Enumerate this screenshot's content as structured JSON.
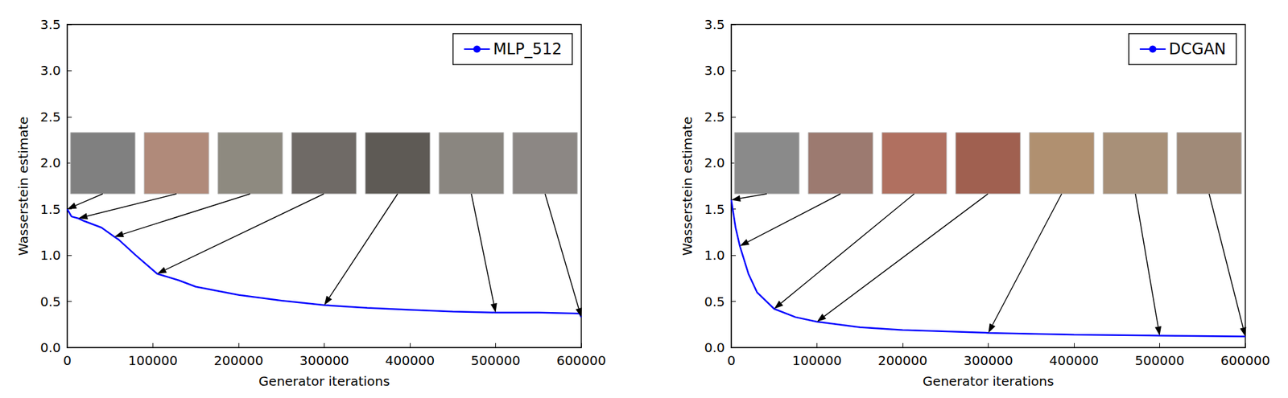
{
  "chart_data": [
    {
      "type": "line",
      "xlabel": "Generator iterations",
      "ylabel": "Wasserstein estimate",
      "x": [
        0,
        5000,
        13000,
        20000,
        40000,
        55000,
        60000,
        80000,
        105000,
        130000,
        150000,
        200000,
        250000,
        300000,
        350000,
        400000,
        450000,
        500000,
        550000,
        598000,
        600000
      ],
      "series": [
        {
          "name": "MLP_512",
          "color": "#0000ff",
          "values": [
            1.5,
            1.42,
            1.4,
            1.37,
            1.3,
            1.2,
            1.17,
            1.0,
            0.8,
            0.73,
            0.66,
            0.57,
            0.51,
            0.46,
            0.43,
            0.41,
            0.39,
            0.38,
            0.38,
            0.37,
            0.33
          ]
        }
      ],
      "xlim": [
        0,
        600000
      ],
      "xticks": [
        0,
        100000,
        200000,
        300000,
        400000,
        500000,
        600000
      ],
      "ylim": [
        0,
        3.5
      ],
      "yticks": [
        {
          "value": 0,
          "label": "0.0"
        },
        {
          "value": 0.5,
          "label": "0.5"
        },
        {
          "value": 1,
          "label": "1.0"
        },
        {
          "value": 1.5,
          "label": "1.5"
        },
        {
          "value": 2,
          "label": "2.0"
        },
        {
          "value": 2.5,
          "label": "2.5"
        },
        {
          "value": 3,
          "label": "3.0"
        },
        {
          "value": 3.5,
          "label": "3.5"
        }
      ],
      "grid": false,
      "legend": "upper right",
      "samples_at": [
        0,
        13000,
        55000,
        105000,
        300000,
        500000,
        600000
      ]
    },
    {
      "type": "line",
      "xlabel": "Generator iterations",
      "ylabel": "Wasserstein estimate",
      "x": [
        0,
        5000,
        10000,
        20000,
        30000,
        50000,
        75000,
        100000,
        150000,
        200000,
        300000,
        400000,
        500000,
        600000
      ],
      "series": [
        {
          "name": "DCGAN",
          "color": "#0000ff",
          "values": [
            1.6,
            1.3,
            1.1,
            0.8,
            0.6,
            0.42,
            0.33,
            0.28,
            0.22,
            0.19,
            0.16,
            0.14,
            0.13,
            0.12
          ]
        }
      ],
      "xlim": [
        0,
        600000
      ],
      "xticks": [
        0,
        100000,
        200000,
        300000,
        400000,
        500000,
        600000
      ],
      "ylim": [
        0,
        3.5
      ],
      "yticks": [
        {
          "value": 0,
          "label": "0.0"
        },
        {
          "value": 0.5,
          "label": "0.5"
        },
        {
          "value": 1,
          "label": "1.0"
        },
        {
          "value": 1.5,
          "label": "1.5"
        },
        {
          "value": 2,
          "label": "2.0"
        },
        {
          "value": 2.5,
          "label": "2.5"
        },
        {
          "value": 3,
          "label": "3.0"
        },
        {
          "value": 3.5,
          "label": "3.5"
        }
      ],
      "grid": false,
      "legend": "upper right",
      "samples_at": [
        0,
        10000,
        50000,
        100000,
        300000,
        500000,
        600000
      ]
    }
  ]
}
